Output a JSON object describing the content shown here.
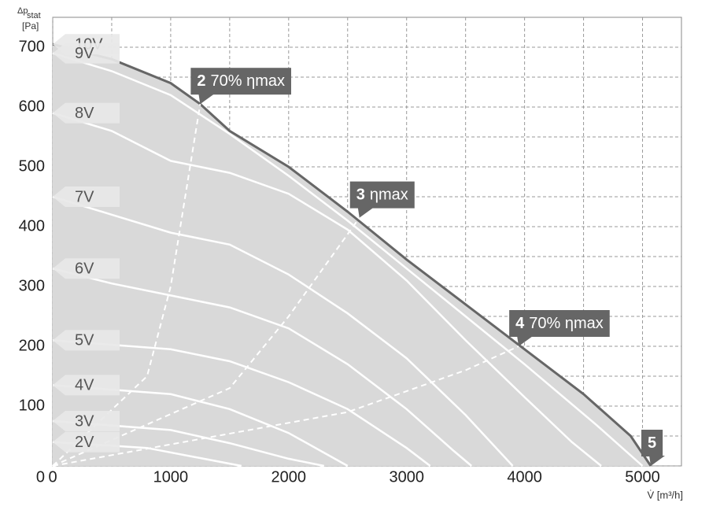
{
  "chart_data": {
    "type": "line",
    "y_label": "Δp",
    "y_label_sub": "stat",
    "y_unit": "[Pa]",
    "x_label": "V̇ [m³/h]",
    "xlim": [
      0,
      5330
    ],
    "ylim": [
      0,
      750
    ],
    "xticks": [
      0,
      1000,
      2000,
      3000,
      4000,
      5000
    ],
    "yticks": [
      0,
      100,
      200,
      300,
      400,
      500,
      600,
      700
    ],
    "grid": true,
    "series": [
      {
        "name": "10V",
        "color": "#666666",
        "x": [
          0,
          500,
          1000,
          1250,
          1500,
          2000,
          2500,
          3000,
          3500,
          4000,
          4500,
          4900,
          5070
        ],
        "values": [
          705,
          680,
          640,
          605,
          560,
          500,
          425,
          345,
          270,
          195,
          120,
          50,
          0
        ]
      },
      {
        "name": "9V",
        "color": "#ffffff",
        "x": [
          0,
          500,
          1000,
          1500,
          2000,
          2500,
          3000,
          3500,
          4000,
          4600,
          5000
        ],
        "values": [
          690,
          660,
          620,
          555,
          485,
          410,
          330,
          250,
          170,
          70,
          0
        ]
      },
      {
        "name": "8V",
        "color": "#ffffff",
        "x": [
          0,
          500,
          1000,
          1500,
          2000,
          2500,
          3000,
          3500,
          4000,
          4400,
          4650
        ],
        "values": [
          590,
          560,
          510,
          490,
          455,
          395,
          310,
          210,
          115,
          40,
          0
        ]
      },
      {
        "name": "7V",
        "color": "#ffffff",
        "x": [
          0,
          500,
          1000,
          1500,
          2000,
          2500,
          3000,
          3500,
          3900
        ],
        "values": [
          450,
          420,
          390,
          370,
          320,
          255,
          180,
          85,
          0
        ]
      },
      {
        "name": "6V",
        "color": "#ffffff",
        "x": [
          0,
          500,
          1000,
          1500,
          2000,
          2500,
          3000,
          3400,
          3550
        ],
        "values": [
          330,
          305,
          285,
          265,
          230,
          170,
          95,
          25,
          0
        ]
      },
      {
        "name": "5V",
        "color": "#ffffff",
        "x": [
          0,
          1000,
          1500,
          2000,
          2500,
          3000,
          3200
        ],
        "values": [
          210,
          195,
          175,
          140,
          95,
          30,
          0
        ]
      },
      {
        "name": "4V",
        "color": "#ffffff",
        "x": [
          0,
          1000,
          1500,
          2000,
          2500
        ],
        "values": [
          135,
          120,
          95,
          55,
          0
        ]
      },
      {
        "name": "3V",
        "color": "#ffffff",
        "x": [
          0,
          1000,
          1500,
          2000,
          2300
        ],
        "values": [
          75,
          60,
          38,
          12,
          0
        ]
      },
      {
        "name": "2V",
        "color": "#ffffff",
        "x": [
          0,
          800,
          1200,
          1600
        ],
        "values": [
          40,
          30,
          15,
          0
        ]
      }
    ],
    "efficiency_lines": [
      {
        "x": [
          0,
          800,
          1000,
          1250
        ],
        "values": [
          0,
          150,
          300,
          605
        ]
      },
      {
        "x": [
          0,
          1500,
          2000,
          2600
        ],
        "values": [
          0,
          130,
          250,
          415
        ]
      },
      {
        "x": [
          0,
          2500,
          3500,
          3950
        ],
        "values": [
          0,
          90,
          160,
          200
        ]
      }
    ],
    "annotations": [
      {
        "number": "2",
        "text": "70% ηmax",
        "x": 1250,
        "y": 605
      },
      {
        "number": "3",
        "text": "ηmax",
        "x": 2600,
        "y": 415
      },
      {
        "number": "4",
        "text": "70% ηmax",
        "x": 3950,
        "y": 200
      },
      {
        "number": "5",
        "x": 5070,
        "y": 0
      }
    ]
  }
}
